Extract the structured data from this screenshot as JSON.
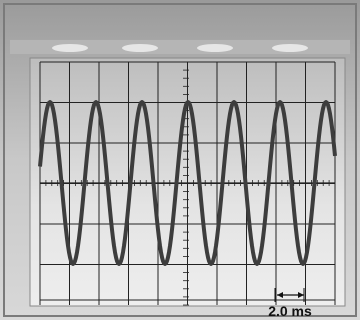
{
  "scale_label": "2.0 ms"
}
